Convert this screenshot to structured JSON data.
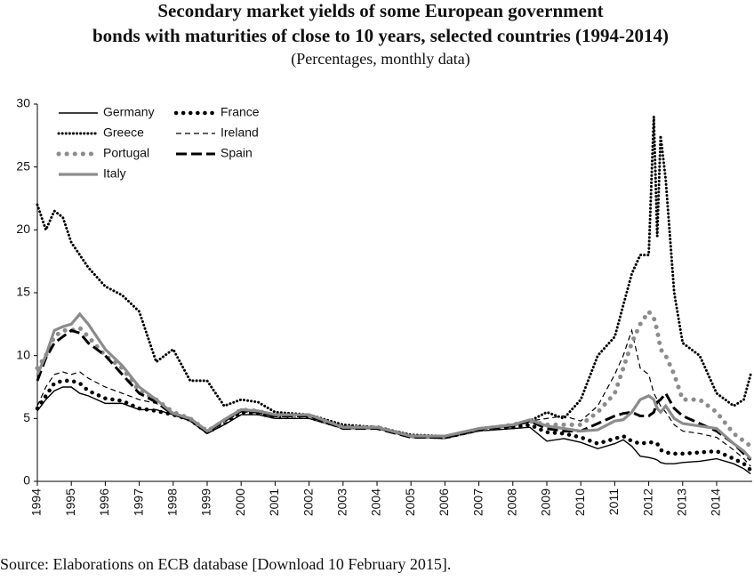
{
  "chart_data": {
    "type": "line",
    "title": [
      "Secondary market yields of some European government",
      "bonds with maturities of close to 10 years, selected countries (1994-2014)"
    ],
    "subtitle": "(Percentages, monthly data)",
    "source": "Source: Elaborations on ECB database [Download 10 February 2015].",
    "legend_position": "upper-left",
    "xlim": [
      1994,
      2015
    ],
    "xticks": [
      1994,
      1995,
      1996,
      1997,
      1998,
      1999,
      2000,
      2001,
      2002,
      2003,
      2004,
      2005,
      2006,
      2007,
      2008,
      2009,
      2010,
      2011,
      2012,
      2013,
      2014
    ],
    "ylim": [
      0,
      30
    ],
    "yticks": [
      0,
      5,
      10,
      15,
      20,
      25,
      30
    ],
    "x": [
      1994,
      1994.25,
      1994.5,
      1994.75,
      1995,
      1995.25,
      1995.5,
      1996,
      1996.5,
      1997,
      1997.5,
      1998,
      1998.5,
      1999,
      1999.5,
      2000,
      2000.5,
      2001,
      2002,
      2003,
      2004,
      2005,
      2006,
      2007,
      2008,
      2008.5,
      2009,
      2009.5,
      2010,
      2010.5,
      2011,
      2011.25,
      2011.5,
      2011.75,
      2012,
      2012.15,
      2012.25,
      2012.35,
      2012.5,
      2012.75,
      2013,
      2013.5,
      2014,
      2014.5,
      2014.8,
      2015
    ],
    "series": [
      {
        "name": "Germany",
        "color": "#000000",
        "style": "solid",
        "values": [
          5.6,
          6.5,
          7.2,
          7.5,
          7.5,
          7,
          6.8,
          6.2,
          6.2,
          5.7,
          5.7,
          5.3,
          4.8,
          3.8,
          4.5,
          5.3,
          5.3,
          5,
          5,
          4.2,
          4.2,
          3.5,
          3.4,
          4.0,
          4.2,
          4.3,
          3.2,
          3.4,
          3.1,
          2.6,
          3.0,
          3.3,
          2.8,
          2.0,
          1.9,
          1.8,
          1.7,
          1.5,
          1.4,
          1.4,
          1.5,
          1.6,
          1.8,
          1.4,
          1.0,
          0.6
        ]
      },
      {
        "name": "France",
        "color": "#000000",
        "style": "dots",
        "values": [
          5.8,
          6.8,
          7.8,
          8,
          8,
          7.8,
          7.2,
          6.6,
          6.4,
          5.8,
          5.6,
          5.3,
          4.9,
          3.9,
          4.6,
          5.5,
          5.4,
          5.1,
          5.1,
          4.3,
          4.3,
          3.6,
          3.5,
          4.1,
          4.3,
          4.5,
          3.9,
          3.8,
          3.5,
          3.0,
          3.4,
          3.6,
          3.2,
          3.0,
          3.1,
          3.1,
          3.0,
          2.5,
          2.3,
          2.2,
          2.2,
          2.3,
          2.4,
          1.8,
          1.4,
          0.9
        ]
      },
      {
        "name": "Greece",
        "color": "#000000",
        "style": "fine-dots",
        "values": [
          22,
          20,
          21.5,
          21,
          19,
          18,
          17,
          15.5,
          14.8,
          13.5,
          9.5,
          10.5,
          8,
          8,
          6,
          6.5,
          6.3,
          5.5,
          5.3,
          4.5,
          4.3,
          3.7,
          3.6,
          4.2,
          4.5,
          4.8,
          5.5,
          5,
          6.5,
          10,
          11.5,
          14,
          16.5,
          18,
          18,
          29,
          19.5,
          27.5,
          24,
          15,
          11,
          10,
          7,
          6,
          6.5,
          8.5
        ]
      },
      {
        "name": "Ireland",
        "color": "#000000",
        "style": "dashed",
        "values": [
          6,
          7.5,
          8.5,
          8.7,
          8.5,
          8.7,
          8.2,
          7.5,
          7,
          6.5,
          6.2,
          5.5,
          5,
          4,
          4.8,
          5.6,
          5.5,
          5.2,
          5.2,
          4.3,
          4.3,
          3.6,
          3.5,
          4.1,
          4.4,
          4.8,
          5,
          5.2,
          4.8,
          6,
          8.5,
          10,
          12,
          9,
          8.5,
          7,
          6.5,
          6,
          5.5,
          4.5,
          4,
          3.8,
          3.5,
          2.5,
          1.8,
          1.2
        ]
      },
      {
        "name": "Portugal",
        "color": "#8c8c8c",
        "style": "grey-dots",
        "values": [
          9,
          10,
          11.5,
          12,
          12,
          12.2,
          11.5,
          10,
          9,
          7.2,
          6.5,
          5.5,
          5,
          4,
          4.8,
          5.7,
          5.6,
          5.2,
          5.2,
          4.3,
          4.3,
          3.6,
          3.5,
          4.1,
          4.5,
          4.8,
          4.5,
          4.5,
          4.5,
          5.5,
          7,
          9,
          11,
          12.5,
          13.5,
          13,
          12,
          10.5,
          10,
          8.5,
          6.5,
          6.5,
          5.5,
          3.8,
          3.2,
          2.8
        ]
      },
      {
        "name": "Spain",
        "color": "#000000",
        "style": "long-dash",
        "values": [
          8,
          9.8,
          11,
          11.5,
          12,
          11.8,
          11,
          10,
          8.5,
          7,
          6.3,
          5.3,
          5,
          3.9,
          4.8,
          5.6,
          5.5,
          5.2,
          5.2,
          4.2,
          4.2,
          3.5,
          3.5,
          4.1,
          4.4,
          4.8,
          4.2,
          4.0,
          4.0,
          4.6,
          5.2,
          5.4,
          5.5,
          5.2,
          5.2,
          5.5,
          6.3,
          6.5,
          7,
          5.8,
          5.2,
          4.6,
          4.0,
          3.0,
          2.2,
          1.7
        ]
      },
      {
        "name": "Italy",
        "color": "#8c8c8c",
        "style": "thick-solid",
        "values": [
          8.5,
          10,
          12,
          12.3,
          12.5,
          13.3,
          12.5,
          10.5,
          9.2,
          7.5,
          6.5,
          5.4,
          5,
          4,
          4.9,
          5.7,
          5.6,
          5.3,
          5.3,
          4.3,
          4.3,
          3.6,
          3.6,
          4.2,
          4.5,
          4.9,
          4.4,
          4.2,
          4.0,
          4.1,
          4.8,
          4.9,
          5.5,
          6.5,
          6.8,
          6.5,
          5.8,
          5.5,
          6,
          5,
          4.6,
          4.4,
          4.2,
          3.0,
          2.4,
          1.8
        ]
      }
    ]
  }
}
